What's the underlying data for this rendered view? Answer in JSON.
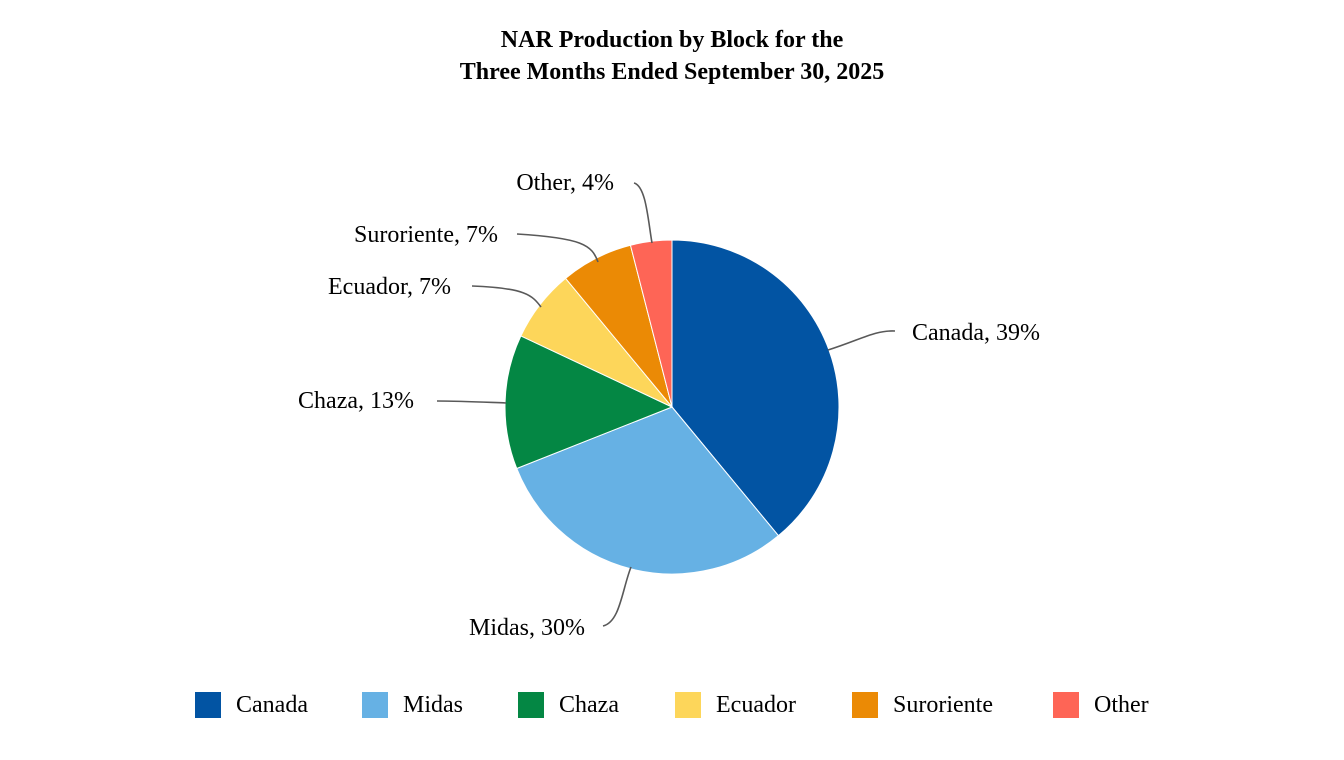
{
  "chart_data": {
    "type": "pie",
    "title_lines": [
      "NAR Production by Block for the",
      "Three Months Ended September 30, 2025"
    ],
    "slices": [
      {
        "name": "Canada",
        "value": 39,
        "label": "Canada, 39%",
        "color": "#0254A3"
      },
      {
        "name": "Midas",
        "value": 30,
        "label": "Midas, 30%",
        "color": "#66B1E4"
      },
      {
        "name": "Chaza",
        "value": 13,
        "label": "Chaza, 13%",
        "color": "#048744"
      },
      {
        "name": "Ecuador",
        "value": 7,
        "label": "Ecuador, 7%",
        "color": "#FDD65A"
      },
      {
        "name": "Suroriente",
        "value": 7,
        "label": "Suroriente, 7%",
        "color": "#EB8A05"
      },
      {
        "name": "Other",
        "value": 4,
        "label": "Other, 4%",
        "color": "#FE6556"
      }
    ],
    "legend_position": "bottom",
    "start_angle": "12 o'clock",
    "direction": "clockwise"
  }
}
